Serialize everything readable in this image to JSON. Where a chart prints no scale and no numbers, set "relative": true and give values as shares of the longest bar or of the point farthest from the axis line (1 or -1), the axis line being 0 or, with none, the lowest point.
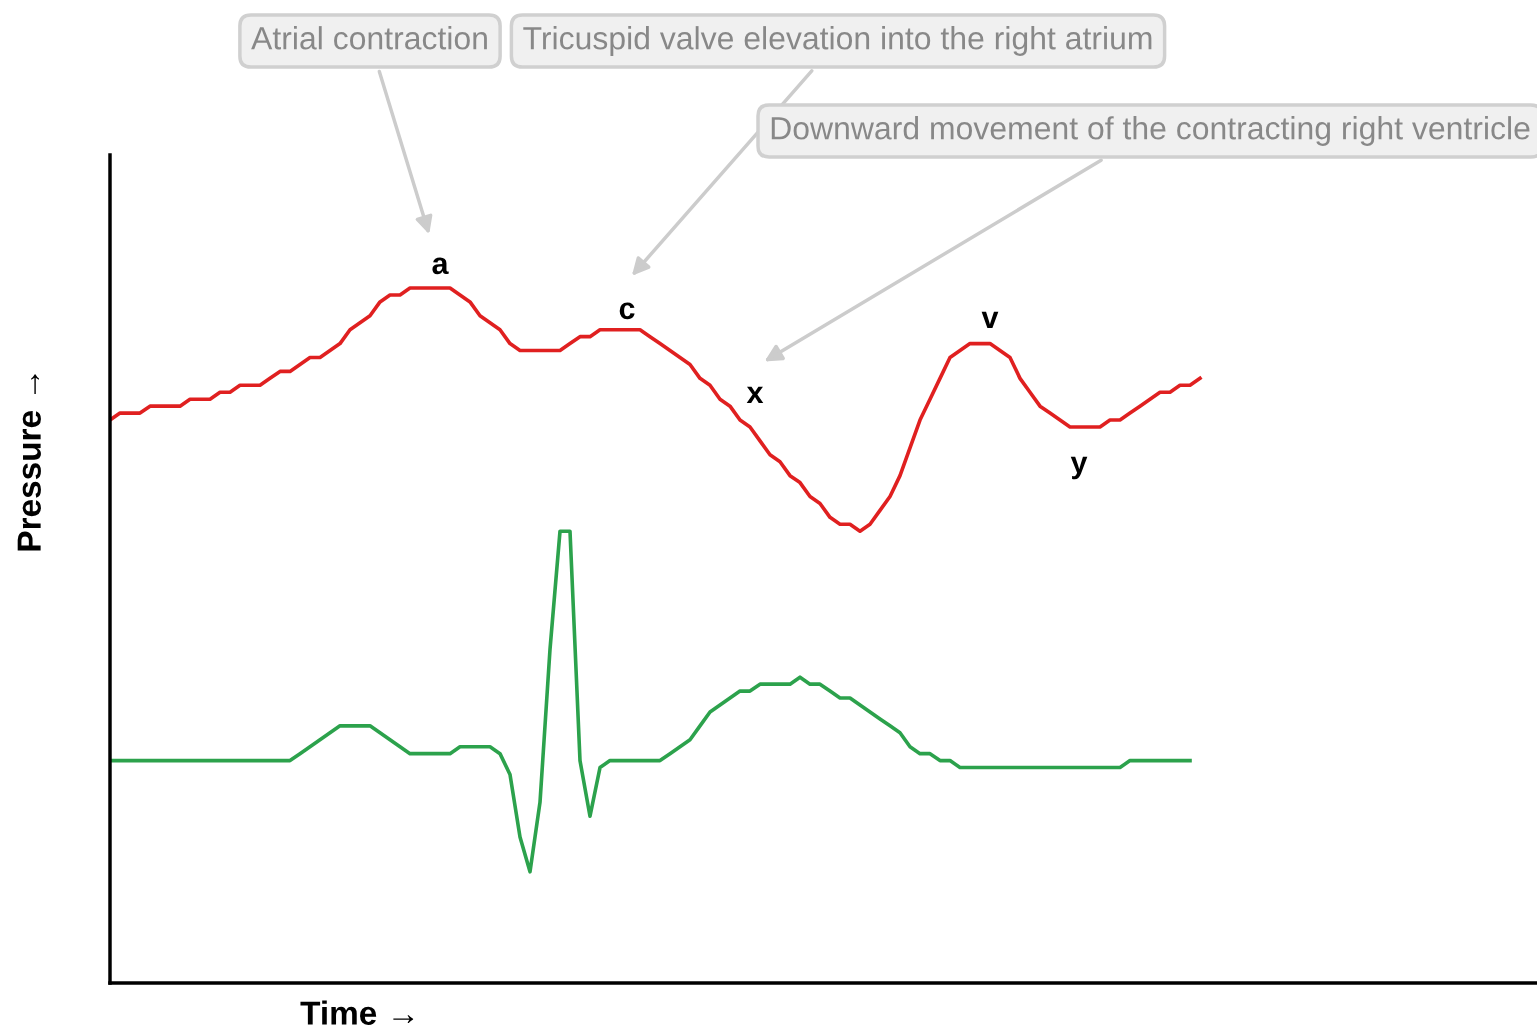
{
  "chart_data": {
    "type": "line",
    "relative": true,
    "xlabel": "Time →",
    "ylabel": "Pressure →",
    "categories": [
      null,
      null,
      null,
      null,
      null,
      null,
      null,
      null,
      null,
      null,
      null,
      null,
      null,
      null,
      null,
      null,
      null,
      null,
      null,
      null,
      null,
      null,
      null,
      null,
      null,
      null,
      null,
      null,
      null,
      null,
      null,
      null,
      null,
      null,
      null,
      null,
      null,
      null,
      null,
      null,
      null,
      null,
      null,
      null,
      null,
      null,
      null,
      null,
      null,
      null,
      null,
      null,
      null,
      null,
      null,
      null,
      null,
      null,
      null,
      null,
      null,
      null,
      null,
      null,
      null,
      null,
      null,
      null,
      null,
      null,
      null,
      null,
      null,
      null,
      null,
      null,
      null,
      null,
      null,
      null,
      null,
      null,
      null,
      null,
      null,
      null,
      null,
      null,
      null,
      null,
      null,
      null,
      null,
      null,
      null,
      null,
      null,
      null,
      null,
      null,
      null,
      null,
      null,
      null,
      null,
      null,
      null,
      null,
      null,
      null
    ],
    "series": [
      {
        "color": "#e02020",
        "values": [
          0.81,
          0.82,
          0.82,
          0.82,
          0.83,
          0.83,
          0.83,
          0.83,
          0.84,
          0.84,
          0.84,
          0.85,
          0.85,
          0.86,
          0.86,
          0.86,
          0.87,
          0.88,
          0.88,
          0.89,
          0.9,
          0.9,
          0.91,
          0.92,
          0.94,
          0.95,
          0.96,
          0.98,
          0.99,
          0.99,
          1.0,
          1.0,
          1.0,
          1.0,
          1.0,
          0.99,
          0.98,
          0.96,
          0.95,
          0.94,
          0.92,
          0.91,
          0.91,
          0.91,
          0.91,
          0.91,
          0.92,
          0.93,
          0.93,
          0.94,
          0.94,
          0.94,
          0.94,
          0.94,
          0.93,
          0.92,
          0.91,
          0.9,
          0.89,
          0.87,
          0.86,
          0.84,
          0.83,
          0.81,
          0.8,
          0.78,
          0.76,
          0.75,
          0.73,
          0.72,
          0.7,
          0.69,
          0.67,
          0.66,
          0.66,
          0.65,
          0.66,
          0.68,
          0.7,
          0.73,
          0.77,
          0.81,
          0.84,
          0.87,
          0.9,
          0.91,
          0.92,
          0.92,
          0.92,
          0.91,
          0.9,
          0.87,
          0.85,
          0.83,
          0.82,
          0.81,
          0.8,
          0.8,
          0.8,
          0.8,
          0.81,
          0.81,
          0.82,
          0.83,
          0.84,
          0.85,
          0.85,
          0.86,
          0.86,
          0.87
        ]
      },
      {
        "color": "#2ca24c",
        "values": [
          0.32,
          0.32,
          0.32,
          0.32,
          0.32,
          0.32,
          0.32,
          0.32,
          0.32,
          0.32,
          0.32,
          0.32,
          0.32,
          0.32,
          0.32,
          0.32,
          0.32,
          0.32,
          0.32,
          0.33,
          0.34,
          0.35,
          0.36,
          0.37,
          0.37,
          0.37,
          0.37,
          0.36,
          0.35,
          0.34,
          0.33,
          0.33,
          0.33,
          0.33,
          0.33,
          0.34,
          0.34,
          0.34,
          0.34,
          0.33,
          0.3,
          0.21,
          0.16,
          0.26,
          0.48,
          0.65,
          0.65,
          0.32,
          0.24,
          0.31,
          0.32,
          0.32,
          0.32,
          0.32,
          0.32,
          0.32,
          0.33,
          0.34,
          0.35,
          0.37,
          0.39,
          0.4,
          0.41,
          0.42,
          0.42,
          0.43,
          0.43,
          0.43,
          0.43,
          0.44,
          0.43,
          0.43,
          0.42,
          0.41,
          0.41,
          0.4,
          0.39,
          0.38,
          0.37,
          0.36,
          0.34,
          0.33,
          0.33,
          0.32,
          0.32,
          0.31,
          0.31,
          0.31,
          0.31,
          0.31,
          0.31,
          0.31,
          0.31,
          0.31,
          0.31,
          0.31,
          0.31,
          0.31,
          0.31,
          0.31,
          0.31,
          0.31,
          0.32,
          0.32,
          0.32,
          0.32,
          0.32,
          0.32,
          0.32,
          null
        ]
      }
    ],
    "annotations": [
      "Atrial contraction",
      "Tricuspid valve elevation into the right atrium",
      "Downward movement of the contracting right ventricle",
      "a",
      "c",
      "x",
      "v",
      "y"
    ],
    "marker": "none",
    "line_style": "solid"
  }
}
